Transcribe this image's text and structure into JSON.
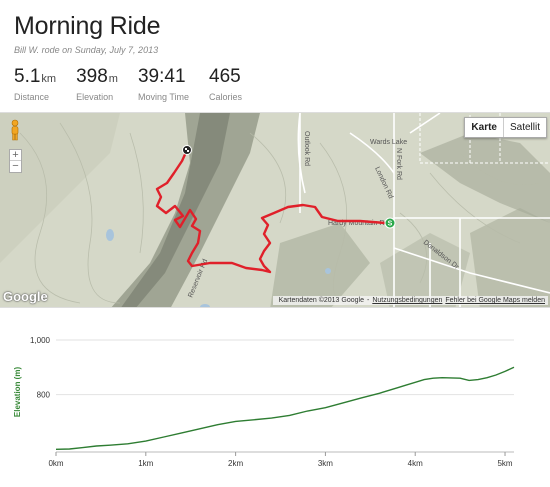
{
  "activity": {
    "title": "Morning Ride",
    "subtitle": "Bill W. rode on Sunday, July 7, 2013"
  },
  "stats": [
    {
      "value": "5.1",
      "unit": "km",
      "label": "Distance"
    },
    {
      "value": "398",
      "unit": "m",
      "label": "Elevation"
    },
    {
      "value": "39:41",
      "unit": "",
      "label": "Moving Time"
    },
    {
      "value": "465",
      "unit": "",
      "label": "Calories"
    }
  ],
  "map": {
    "type_buttons": {
      "map": "Karte",
      "satellite": "Satellit"
    },
    "zoom_in": "+",
    "zoom_out": "−",
    "logo": "Google",
    "attribution": "Kartendaten ©2013 Google",
    "terms_link": "Nutzungsbedingungen",
    "report_link": "Fehler bei Google Maps melden",
    "labels": {
      "wards_lake": "Wards Lake",
      "london_rd": "London Rd",
      "n_fork_rd": "N Fork Rd",
      "donaldson_dr": "Donaldson Dr",
      "outlook_rd": "Outlook Rd",
      "hardy_mountain_rd": "Hardy Mountain Rd",
      "reservoir_rd": "Reservoir Rd"
    },
    "route_color": "#e0202a",
    "start_marker": "S",
    "start_marker_color": "#2aa84a"
  },
  "chart_data": {
    "type": "area",
    "title": "",
    "xlabel": "",
    "ylabel": "Elevation (m)",
    "x_ticks": [
      "0km",
      "1km",
      "2km",
      "3km",
      "4km",
      "5km"
    ],
    "y_ticks": [
      "1,000",
      "800"
    ],
    "xlim": [
      0,
      5.1
    ],
    "ylim": [
      590,
      1000
    ],
    "grid": true,
    "line_color": "#2e7d32",
    "x": [
      0,
      0.15,
      0.3,
      0.45,
      0.6,
      0.8,
      1.0,
      1.2,
      1.4,
      1.6,
      1.8,
      2.0,
      2.2,
      2.4,
      2.6,
      2.8,
      3.0,
      3.2,
      3.4,
      3.6,
      3.8,
      3.9,
      4.1,
      4.2,
      4.3,
      4.5,
      4.6,
      4.7,
      4.8,
      4.9,
      5.0,
      5.1
    ],
    "y": [
      600,
      601,
      606,
      612,
      615,
      620,
      630,
      645,
      660,
      675,
      690,
      702,
      708,
      714,
      724,
      740,
      752,
      770,
      788,
      805,
      825,
      835,
      855,
      860,
      862,
      860,
      852,
      855,
      862,
      872,
      885,
      900
    ]
  }
}
